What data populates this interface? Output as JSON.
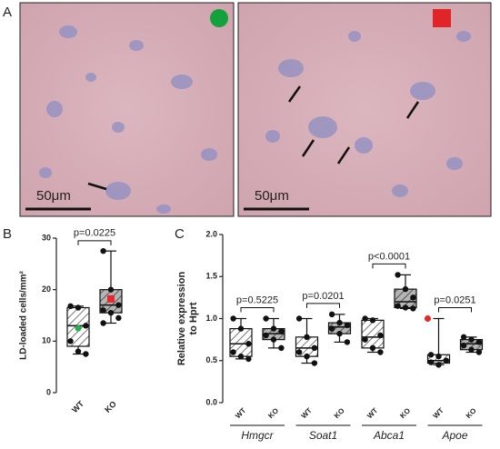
{
  "images": {
    "panel_label": "A",
    "scale_bar_labels": [
      "50μm",
      "50μm"
    ]
  },
  "chart_data": [
    {
      "type": "box",
      "panel_label": "B",
      "ylabel": "LD-loaded cells/mm²",
      "categories": [
        "WT",
        "KO"
      ],
      "ylim": [
        0,
        30
      ],
      "yticks": [
        0,
        10,
        20,
        30
      ],
      "colors": [
        "#ffffff",
        "#9a9a9a"
      ],
      "mean_colors": [
        "#22b14c",
        "#e8262b"
      ],
      "boxes": [
        {
          "min": 7.5,
          "q1": 9,
          "median": 13,
          "q3": 16.5,
          "max": 16.8,
          "mean": 12.5,
          "points": [
            16.8,
            16.5,
            13,
            10,
            8,
            7.5
          ]
        },
        {
          "min": 13.5,
          "q1": 15.5,
          "median": 17,
          "q3": 20,
          "max": 27.5,
          "mean": 18.2,
          "points": [
            27.5,
            20,
            17,
            16,
            15.5,
            14.5,
            13.5
          ]
        }
      ],
      "annotations": [
        "p=0.0225"
      ]
    },
    {
      "type": "grouped-box",
      "panel_label": "C",
      "ylabel_lines": [
        "Relative expression",
        "to Hprt"
      ],
      "categories": [
        "Hmgcr",
        "Soat1",
        "Abca1",
        "Apoe"
      ],
      "ylim": [
        0,
        2
      ],
      "yticks": [
        {
          "value": 0,
          "label": "0.0"
        },
        {
          "value": 0.5,
          "label": "0.5"
        },
        {
          "value": 1,
          "label": "1.0"
        },
        {
          "value": 1.5,
          "label": "1.5"
        },
        {
          "value": 2,
          "label": "2.0"
        }
      ],
      "series": [
        {
          "name": "WT",
          "color": "#ffffff",
          "boxes": [
            {
              "min": 0.52,
              "q1": 0.55,
              "median": 0.7,
              "q3": 0.88,
              "max": 1.0,
              "points": [
                1.0,
                0.88,
                0.7,
                0.6,
                0.55,
                0.52
              ]
            },
            {
              "min": 0.47,
              "q1": 0.55,
              "median": 0.65,
              "q3": 0.78,
              "max": 1.0,
              "points": [
                1.0,
                0.78,
                0.65,
                0.6,
                0.55,
                0.47
              ]
            },
            {
              "min": 0.6,
              "q1": 0.65,
              "median": 0.78,
              "q3": 0.98,
              "max": 1.0,
              "points": [
                1.0,
                0.98,
                0.8,
                0.75,
                0.65,
                0.6
              ]
            },
            {
              "min": 0.45,
              "q1": 0.47,
              "median": 0.5,
              "q3": 0.57,
              "max": 1.0,
              "outlier": 1.0,
              "points": [
                0.57,
                0.55,
                0.5,
                0.48,
                0.45
              ]
            }
          ]
        },
        {
          "name": "KO",
          "color": "#9a9a9a",
          "boxes": [
            {
              "min": 0.65,
              "q1": 0.75,
              "median": 0.82,
              "q3": 0.88,
              "max": 1.0,
              "points": [
                1.0,
                0.88,
                0.85,
                0.8,
                0.75,
                0.65
              ]
            },
            {
              "min": 0.72,
              "q1": 0.82,
              "median": 0.9,
              "q3": 0.95,
              "max": 1.05,
              "points": [
                1.05,
                0.95,
                0.92,
                0.88,
                0.82,
                0.72
              ]
            },
            {
              "min": 1.12,
              "q1": 1.13,
              "median": 1.2,
              "q3": 1.35,
              "max": 1.52,
              "points": [
                1.52,
                1.35,
                1.25,
                1.15,
                1.13,
                1.12
              ]
            },
            {
              "min": 0.6,
              "q1": 0.63,
              "median": 0.7,
              "q3": 0.75,
              "max": 0.78,
              "points": [
                0.78,
                0.75,
                0.72,
                0.68,
                0.63,
                0.6
              ]
            }
          ]
        }
      ],
      "annotations": [
        "p=0.5225",
        "p=0.0201",
        "p<0.0001",
        "p=0.0251"
      ]
    }
  ]
}
